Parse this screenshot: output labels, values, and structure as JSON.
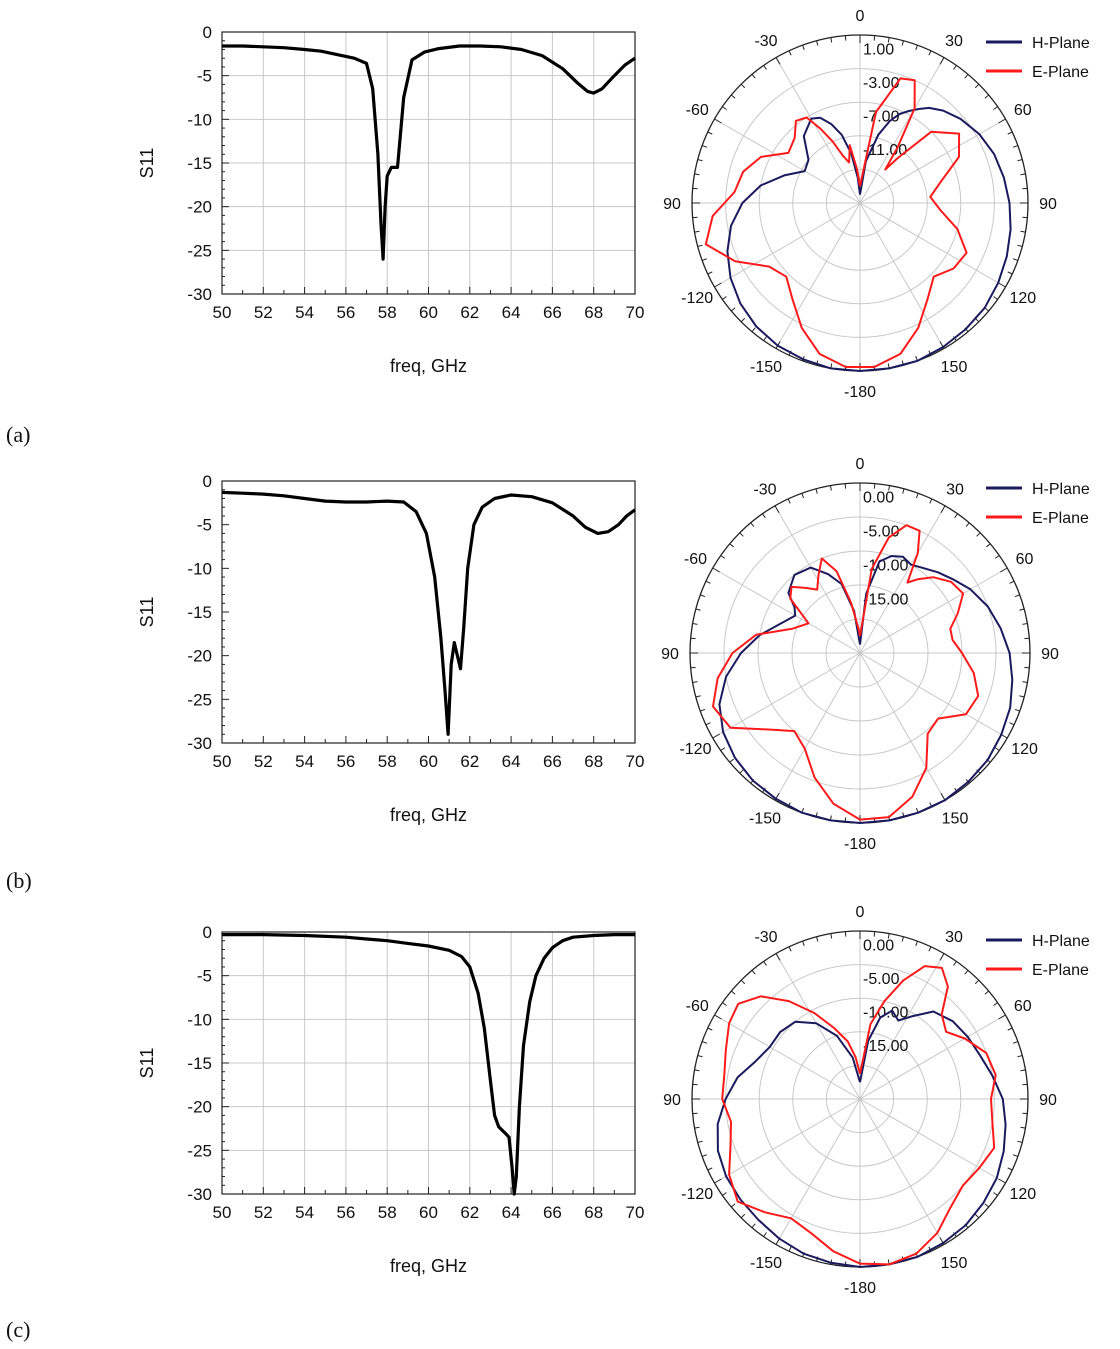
{
  "panels": [
    {
      "label": "(a)"
    },
    {
      "label": "(b)"
    },
    {
      "label": "(c)"
    }
  ],
  "colors": {
    "h_plane": "#1a1a5e",
    "e_plane": "#ff1a1a",
    "s11": "#000000",
    "grid": "#c8c8c8"
  },
  "chart_data": [
    {
      "type": "line",
      "panel": "(a)",
      "xlabel": "freq, GHz",
      "ylabel": "S11",
      "xlim": [
        50,
        70
      ],
      "ylim": [
        -30,
        0
      ],
      "xticks": [
        "50",
        "52",
        "54",
        "56",
        "58",
        "60",
        "62",
        "64",
        "66",
        "68",
        "70"
      ],
      "yticks": [
        "0",
        "-5",
        "-10",
        "-15",
        "-20",
        "-25",
        "-30"
      ],
      "grid": true,
      "series": [
        {
          "x": [
            50,
            51,
            52,
            53,
            54,
            54.8,
            55.6,
            56.4,
            57,
            57.3,
            57.55,
            57.7,
            57.8,
            57.9,
            58.0,
            58.2,
            58.5,
            58.8,
            59.2,
            59.8,
            60.5,
            61.5,
            62.5,
            63.5,
            64.5,
            65.5,
            66.5,
            67.2,
            67.7,
            68.0,
            68.4,
            69.0,
            69.5,
            70
          ],
          "y": [
            -1.6,
            -1.6,
            -1.7,
            -1.8,
            -2.0,
            -2.2,
            -2.6,
            -3.0,
            -3.6,
            -6.5,
            -14,
            -22,
            -26,
            -20,
            -16.5,
            -15.5,
            -15.5,
            -7.5,
            -3.2,
            -2.3,
            -1.9,
            -1.6,
            -1.6,
            -1.7,
            -2.0,
            -2.7,
            -4.2,
            -5.8,
            -6.8,
            -7.0,
            -6.5,
            -5.0,
            -3.8,
            -3.0
          ]
        }
      ]
    },
    {
      "type": "polar",
      "panel": "(a)",
      "angle_labels": [
        "0",
        "30",
        "60",
        "90",
        "120",
        "150",
        "-180",
        "-150",
        "-120",
        "90",
        "-60",
        "-30"
      ],
      "radial_labels": [
        "1.00",
        "-3.00",
        "-7.00",
        "-11.00"
      ],
      "legend": [
        "H-Plane",
        "E-Plane"
      ],
      "legend_position": "top-right",
      "series": [
        {
          "name": "H-Plane",
          "angle_deg": [
            0,
            8,
            15,
            20,
            24,
            28,
            32,
            36,
            42,
            50,
            60,
            70,
            80,
            90,
            100,
            110,
            120,
            130,
            140,
            150,
            160,
            170,
            180,
            190,
            200,
            210,
            220,
            230,
            240,
            250,
            260,
            270,
            280,
            290,
            300,
            310,
            320,
            330,
            335,
            340,
            345,
            350,
            355,
            360
          ],
          "radius_norm": [
            0.05,
            0.25,
            0.42,
            0.52,
            0.58,
            0.62,
            0.66,
            0.7,
            0.74,
            0.78,
            0.82,
            0.85,
            0.87,
            0.89,
            0.91,
            0.93,
            0.95,
            0.97,
            0.98,
            0.99,
            1.0,
            1.0,
            1.0,
            1.0,
            0.99,
            0.98,
            0.96,
            0.93,
            0.89,
            0.84,
            0.78,
            0.7,
            0.6,
            0.48,
            0.38,
            0.4,
            0.52,
            0.58,
            0.56,
            0.5,
            0.42,
            0.3,
            0.15,
            0.05
          ]
        },
        {
          "name": "E-Plane",
          "angle_deg": [
            0,
            10,
            18,
            24,
            30,
            34,
            37,
            40,
            45,
            55,
            65,
            75,
            85,
            95,
            105,
            115,
            125,
            135,
            145,
            155,
            165,
            175,
            185,
            195,
            205,
            215,
            225,
            235,
            245,
            255,
            265,
            275,
            285,
            295,
            305,
            315,
            322,
            328,
            332,
            336,
            340,
            345,
            350,
            355,
            360
          ],
          "radius_norm": [
            0.1,
            0.55,
            0.78,
            0.8,
            0.65,
            0.4,
            0.25,
            0.35,
            0.6,
            0.72,
            0.65,
            0.5,
            0.42,
            0.48,
            0.6,
            0.7,
            0.68,
            0.62,
            0.7,
            0.82,
            0.93,
            0.98,
            0.98,
            0.93,
            0.82,
            0.7,
            0.62,
            0.66,
            0.82,
            0.95,
            0.88,
            0.75,
            0.72,
            0.65,
            0.52,
            0.55,
            0.62,
            0.6,
            0.5,
            0.4,
            0.3,
            0.25,
            0.35,
            0.2,
            0.1
          ]
        }
      ]
    },
    {
      "type": "line",
      "panel": "(b)",
      "xlabel": "freq, GHz",
      "ylabel": "S11",
      "xlim": [
        50,
        70
      ],
      "ylim": [
        -30,
        0
      ],
      "xticks": [
        "50",
        "52",
        "54",
        "56",
        "58",
        "60",
        "62",
        "64",
        "66",
        "68",
        "70"
      ],
      "yticks": [
        "0",
        "-5",
        "-10",
        "-15",
        "-20",
        "-25",
        "-30"
      ],
      "grid": false,
      "series": [
        {
          "x": [
            50,
            51,
            52,
            53,
            54,
            55,
            56,
            57,
            58,
            58.8,
            59.4,
            59.9,
            60.3,
            60.6,
            60.8,
            60.95,
            61.1,
            61.25,
            61.4,
            61.55,
            61.7,
            61.9,
            62.2,
            62.6,
            63.2,
            64,
            65,
            66,
            67,
            67.6,
            68.2,
            68.7,
            69.2,
            69.6,
            70
          ],
          "y": [
            -1.3,
            -1.4,
            -1.5,
            -1.7,
            -2.0,
            -2.3,
            -2.4,
            -2.4,
            -2.3,
            -2.4,
            -3.5,
            -6,
            -11,
            -18,
            -24,
            -29,
            -21,
            -18.5,
            -20,
            -21.5,
            -17,
            -10,
            -5,
            -3,
            -2.0,
            -1.6,
            -1.8,
            -2.5,
            -4,
            -5.3,
            -6,
            -5.8,
            -5,
            -4,
            -3.3
          ]
        }
      ]
    },
    {
      "type": "polar",
      "panel": "(b)",
      "angle_labels": [
        "0",
        "30",
        "60",
        "90",
        "120",
        "150",
        "-180",
        "-150",
        "-120",
        "90",
        "-60",
        "-30"
      ],
      "radial_labels": [
        "0.00",
        "-5.00",
        "-10.00",
        "-15.00"
      ],
      "legend": [
        "H-Plane",
        "E-Plane"
      ],
      "legend_position": "top-right",
      "series": [
        {
          "name": "H-Plane",
          "angle_deg": [
            0,
            6,
            12,
            18,
            24,
            30,
            36,
            44,
            52,
            60,
            70,
            80,
            90,
            100,
            110,
            120,
            130,
            140,
            150,
            160,
            170,
            180,
            190,
            200,
            210,
            220,
            230,
            240,
            250,
            260,
            270,
            280,
            290,
            300,
            305,
            310,
            320,
            330,
            338,
            345,
            352,
            360
          ],
          "radius_norm": [
            0.05,
            0.35,
            0.55,
            0.6,
            0.62,
            0.6,
            0.62,
            0.66,
            0.7,
            0.75,
            0.8,
            0.84,
            0.88,
            0.91,
            0.94,
            0.96,
            0.98,
            0.99,
            1.0,
            1.0,
            1.0,
            1.0,
            1.0,
            1.0,
            0.99,
            0.98,
            0.96,
            0.93,
            0.88,
            0.8,
            0.7,
            0.6,
            0.5,
            0.44,
            0.47,
            0.55,
            0.6,
            0.58,
            0.5,
            0.42,
            0.25,
            0.05
          ]
        },
        {
          "name": "E-Plane",
          "angle_deg": [
            0,
            8,
            14,
            20,
            26,
            30,
            34,
            38,
            44,
            52,
            60,
            68,
            75,
            82,
            90,
            100,
            110,
            120,
            130,
            140,
            150,
            160,
            170,
            180,
            190,
            200,
            210,
            220,
            230,
            240,
            250,
            260,
            270,
            280,
            290,
            300,
            308,
            314,
            320,
            326,
            332,
            338,
            344,
            350,
            356,
            360
          ],
          "radius_norm": [
            0.1,
            0.5,
            0.7,
            0.8,
            0.8,
            0.68,
            0.5,
            0.55,
            0.62,
            0.68,
            0.7,
            0.62,
            0.55,
            0.55,
            0.6,
            0.68,
            0.74,
            0.72,
            0.6,
            0.62,
            0.78,
            0.9,
            0.98,
            0.98,
            0.9,
            0.78,
            0.65,
            0.6,
            0.7,
            0.88,
            0.92,
            0.85,
            0.75,
            0.62,
            0.42,
            0.35,
            0.52,
            0.56,
            0.5,
            0.45,
            0.52,
            0.6,
            0.5,
            0.3,
            0.15,
            0.1
          ]
        }
      ]
    },
    {
      "type": "line",
      "panel": "(c)",
      "xlabel": "freq, GHz",
      "ylabel": "S11",
      "xlim": [
        50,
        70
      ],
      "ylim": [
        -30,
        0
      ],
      "xticks": [
        "50",
        "52",
        "54",
        "56",
        "58",
        "60",
        "62",
        "64",
        "66",
        "68",
        "70"
      ],
      "yticks": [
        "0",
        "-5",
        "-10",
        "-15",
        "-20",
        "-25",
        "-30"
      ],
      "grid": true,
      "series": [
        {
          "x": [
            50,
            52,
            54,
            56,
            57,
            58,
            59,
            60,
            61,
            61.6,
            62,
            62.4,
            62.7,
            63,
            63.2,
            63.4,
            63.7,
            63.9,
            64.05,
            64.15,
            64.25,
            64.4,
            64.6,
            64.9,
            65.2,
            65.6,
            66,
            66.5,
            67,
            68,
            69,
            70
          ],
          "y": [
            -0.3,
            -0.3,
            -0.4,
            -0.6,
            -0.8,
            -1.0,
            -1.3,
            -1.6,
            -2.1,
            -2.8,
            -4,
            -7,
            -11,
            -17,
            -21,
            -22.3,
            -23,
            -23.5,
            -27,
            -30,
            -28,
            -20,
            -13,
            -8,
            -5,
            -3,
            -1.8,
            -1.0,
            -0.6,
            -0.4,
            -0.3,
            -0.3
          ]
        }
      ]
    },
    {
      "type": "polar",
      "panel": "(c)",
      "angle_labels": [
        "0",
        "30",
        "60",
        "90",
        "120",
        "150",
        "-180",
        "-150",
        "-120",
        "90",
        "-60",
        "-30"
      ],
      "radial_labels": [
        "0.00",
        "-5.00",
        "-10.00",
        "-15.00"
      ],
      "legend": [
        "H-Plane",
        "E-Plane"
      ],
      "legend_position": "top-right",
      "series": [
        {
          "name": "H-Plane",
          "angle_deg": [
            0,
            8,
            14,
            20,
            26,
            32,
            40,
            50,
            60,
            70,
            80,
            90,
            100,
            110,
            120,
            130,
            140,
            150,
            160,
            170,
            180,
            190,
            200,
            210,
            220,
            230,
            240,
            250,
            260,
            270,
            280,
            290,
            300,
            310,
            320,
            330,
            340,
            350,
            360
          ],
          "radius_norm": [
            0.1,
            0.35,
            0.5,
            0.56,
            0.52,
            0.58,
            0.68,
            0.72,
            0.74,
            0.76,
            0.8,
            0.85,
            0.88,
            0.91,
            0.94,
            0.96,
            0.98,
            0.99,
            1.0,
            1.0,
            1.0,
            0.99,
            0.98,
            0.96,
            0.94,
            0.93,
            0.92,
            0.9,
            0.86,
            0.8,
            0.74,
            0.66,
            0.62,
            0.62,
            0.6,
            0.52,
            0.4,
            0.25,
            0.1
          ]
        },
        {
          "name": "E-Plane",
          "angle_deg": [
            0,
            8,
            14,
            20,
            26,
            32,
            38,
            44,
            52,
            60,
            70,
            80,
            90,
            100,
            110,
            120,
            130,
            140,
            150,
            160,
            170,
            180,
            190,
            200,
            210,
            220,
            230,
            240,
            250,
            260,
            270,
            280,
            290,
            300,
            308,
            316,
            324,
            332,
            340,
            348,
            354,
            360
          ],
          "radius_norm": [
            0.15,
            0.45,
            0.6,
            0.75,
            0.88,
            0.92,
            0.85,
            0.7,
            0.65,
            0.72,
            0.8,
            0.82,
            0.78,
            0.8,
            0.85,
            0.82,
            0.8,
            0.84,
            0.92,
            0.98,
            1.0,
            0.98,
            0.92,
            0.85,
            0.82,
            0.88,
            0.95,
            0.9,
            0.82,
            0.78,
            0.82,
            0.82,
            0.85,
            0.9,
            0.92,
            0.85,
            0.72,
            0.58,
            0.45,
            0.35,
            0.25,
            0.15
          ]
        }
      ]
    }
  ]
}
